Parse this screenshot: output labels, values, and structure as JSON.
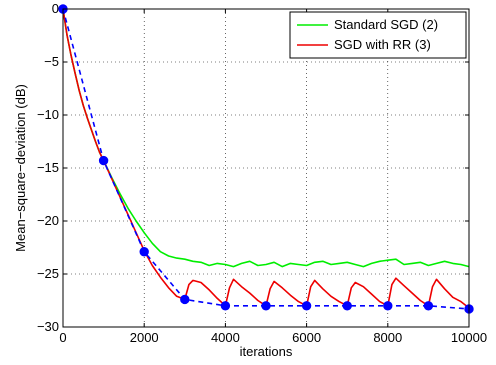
{
  "chart_data": {
    "type": "line",
    "xlabel": "iterations",
    "ylabel": "Mean−square−deviation (dB)",
    "xlim": [
      0,
      10000
    ],
    "ylim": [
      -30,
      0
    ],
    "xticks": [
      0,
      2000,
      4000,
      6000,
      8000,
      10000
    ],
    "xtick_labels": [
      "0",
      "2000",
      "4000",
      "6000",
      "8000",
      "10000"
    ],
    "yticks": [
      0,
      -5,
      -10,
      -15,
      -20,
      -25,
      -30
    ],
    "ytick_labels": [
      "0",
      "−5",
      "−10",
      "−15",
      "−20",
      "−25",
      "−30"
    ],
    "grid": true,
    "legend_position": "top-right",
    "series": [
      {
        "name": "Standard SGD (2)",
        "color": "#00ee00",
        "style": "solid",
        "x": [
          0,
          100,
          200,
          300,
          400,
          500,
          600,
          700,
          800,
          900,
          1000,
          1200,
          1400,
          1600,
          1800,
          2000,
          2200,
          2400,
          2600,
          2800,
          3000,
          3200,
          3400,
          3600,
          3800,
          4000,
          4200,
          4400,
          4600,
          4800,
          5000,
          5200,
          5400,
          5600,
          5800,
          6000,
          6200,
          6400,
          6600,
          6800,
          7000,
          7200,
          7400,
          7600,
          7800,
          8000,
          8200,
          8400,
          8600,
          8800,
          9000,
          9200,
          9400,
          9600,
          9800,
          10000
        ],
        "y": [
          0,
          -2.5,
          -4.4,
          -6.1,
          -7.7,
          -9.1,
          -10.3,
          -11.4,
          -12.5,
          -13.5,
          -14.3,
          -15.9,
          -17.4,
          -18.8,
          -20.0,
          -21.1,
          -22.1,
          -22.9,
          -23.3,
          -23.5,
          -23.6,
          -23.8,
          -23.9,
          -24.2,
          -24.0,
          -24.1,
          -24.3,
          -24.0,
          -23.8,
          -24.2,
          -24.1,
          -23.9,
          -24.3,
          -24.0,
          -24.1,
          -24.2,
          -23.9,
          -23.8,
          -24.1,
          -24.0,
          -23.9,
          -24.1,
          -24.3,
          -24.0,
          -23.8,
          -23.7,
          -23.6,
          -24.1,
          -24.0,
          -23.9,
          -24.2,
          -24.0,
          -23.8,
          -24.0,
          -24.1,
          -24.3
        ]
      },
      {
        "name": "SGD with RR (3)",
        "color": "#ee0000",
        "style": "solid",
        "x": [
          0,
          100,
          200,
          300,
          400,
          500,
          600,
          700,
          800,
          900,
          1000,
          1200,
          1400,
          1600,
          1800,
          2000,
          2200,
          2400,
          2600,
          2800,
          3000,
          3100,
          3200,
          3400,
          3600,
          3800,
          4000,
          4100,
          4200,
          4400,
          4600,
          4800,
          5000,
          5100,
          5200,
          5400,
          5600,
          5800,
          6000,
          6100,
          6200,
          6400,
          6600,
          6800,
          7000,
          7100,
          7200,
          7400,
          7600,
          7800,
          8000,
          8100,
          8200,
          8400,
          8600,
          8800,
          9000,
          9100,
          9200,
          9400,
          9600,
          9800,
          10000
        ],
        "y": [
          0,
          -2.5,
          -4.4,
          -6.1,
          -7.7,
          -9.1,
          -10.3,
          -11.4,
          -12.5,
          -13.5,
          -14.3,
          -16.0,
          -17.7,
          -19.4,
          -21.1,
          -22.8,
          -24.2,
          -25.3,
          -26.3,
          -27.1,
          -27.4,
          -26.0,
          -25.6,
          -25.8,
          -26.5,
          -27.3,
          -28.0,
          -26.3,
          -25.5,
          -26.2,
          -26.8,
          -27.5,
          -28.0,
          -26.4,
          -25.7,
          -26.3,
          -27.0,
          -27.6,
          -28.0,
          -26.2,
          -25.6,
          -26.4,
          -27.1,
          -27.6,
          -28.0,
          -26.3,
          -25.8,
          -26.2,
          -26.9,
          -27.6,
          -28.0,
          -26.0,
          -25.4,
          -26.1,
          -26.8,
          -27.5,
          -28.0,
          -26.2,
          -25.5,
          -26.4,
          -27.2,
          -27.6,
          -28.2
        ]
      },
      {
        "name": "",
        "color": "#0000ff",
        "style": "dashed",
        "marker": "circle",
        "x": [
          0,
          1000,
          2000,
          3000,
          4000,
          5000,
          6000,
          7000,
          8000,
          9000,
          10000
        ],
        "y": [
          0,
          -14.3,
          -22.9,
          -27.4,
          -28.0,
          -28.0,
          -28.0,
          -28.0,
          -28.0,
          -28.0,
          -28.3
        ]
      }
    ]
  }
}
